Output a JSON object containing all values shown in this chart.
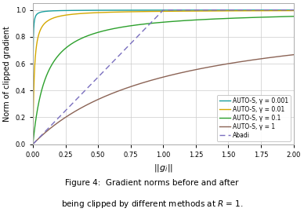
{
  "xlabel": "$||g_i||$",
  "ylabel": "Norm of clipped gradient",
  "xlim": [
    0.0,
    2.0
  ],
  "ylim": [
    0.0,
    1.05
  ],
  "xticks": [
    0.0,
    0.25,
    0.5,
    0.75,
    1.0,
    1.25,
    1.5,
    1.75,
    2.0
  ],
  "yticks": [
    0.0,
    0.2,
    0.4,
    0.6,
    0.8,
    1.0
  ],
  "R": 1.0,
  "gammas": [
    0.001,
    0.01,
    0.1,
    1.0
  ],
  "colors": {
    "0.001": "#1a9e9e",
    "0.01": "#d4a800",
    "0.1": "#2ca02c",
    "1.0": "#8b6355",
    "abadi": "#7a6fbf"
  },
  "legend_labels": {
    "0.001": "AUTO-S, γ = 0.001",
    "0.01": "AUTO-S, γ = 0.01",
    "0.1": "AUTO-S, γ = 0.1",
    "1.0": "AUTO-S, γ = 1",
    "abadi": "Abadi"
  },
  "caption_pre": "Figure 4:  Gradient norms before and after\nbeing clipped by different methods at ",
  "caption_post": " = 1.",
  "plot_bg": "#ffffff",
  "fig_bg": "#ffffff"
}
